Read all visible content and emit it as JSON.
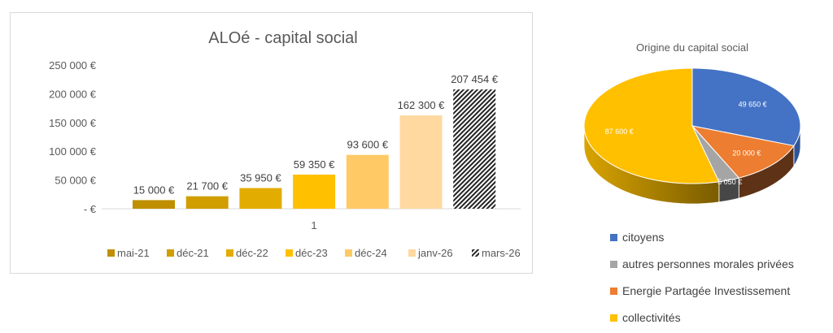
{
  "chart_data": [
    {
      "type": "bar",
      "title": "ALOé - capital social",
      "xlabel": "",
      "ylabel": "",
      "categories": [
        "1"
      ],
      "ylim": [
        0,
        250000
      ],
      "y_ticks": [
        {
          "v": 250000,
          "label": "250 000 €"
        },
        {
          "v": 200000,
          "label": "200 000 €"
        },
        {
          "v": 150000,
          "label": "150 000 €"
        },
        {
          "v": 100000,
          "label": "100 000 €"
        },
        {
          "v": 50000,
          "label": "50 000 €"
        },
        {
          "v": 0,
          "label": "-   €"
        }
      ],
      "series": [
        {
          "name": "mai-21",
          "values": [
            15000
          ],
          "label": "15 000 €",
          "color": "#BF8F00"
        },
        {
          "name": "déc-21",
          "values": [
            21700
          ],
          "label": "21 700 €",
          "color": "#D19E00"
        },
        {
          "name": "déc-22",
          "values": [
            35950
          ],
          "label": "35 950 €",
          "color": "#E3AC00"
        },
        {
          "name": "déc-23",
          "values": [
            59350
          ],
          "label": "59 350 €",
          "color": "#FFC000"
        },
        {
          "name": "déc-24",
          "values": [
            93600
          ],
          "label": "93 600 €",
          "color": "#FFCA66"
        },
        {
          "name": "janv-26",
          "values": [
            162300
          ],
          "label": "162 300 €",
          "color": "#FFD9A0"
        },
        {
          "name": "mars-26",
          "values": [
            207454
          ],
          "label": "207 454 €",
          "color": "pattern"
        }
      ],
      "legend_position": "bottom",
      "grid": false
    },
    {
      "type": "pie",
      "title": "Origine du capital social",
      "legend_position": "bottom-right",
      "slices": [
        {
          "name": "citoyens",
          "value": 49650,
          "label": "49 650 €",
          "color": "#4472C4",
          "side": "#2F5597"
        },
        {
          "name": "Energie Partagée Investissement",
          "value": 20000,
          "label": "20 000 €",
          "color": "#ED7D31",
          "side": "#5E3216"
        },
        {
          "name": "autres personnes morales privées",
          "value": 5050,
          "label": "5 050 €",
          "color": "#A5A5A5",
          "side": "#474747"
        },
        {
          "name": "collectivités",
          "value": 87600,
          "label": "87 600 €",
          "color": "#FFC000",
          "side": "#B88A00"
        }
      ],
      "legend_order": [
        "citoyens",
        "autres personnes morales privées",
        "Energie Partagée Investissement",
        "collectivités"
      ]
    }
  ]
}
